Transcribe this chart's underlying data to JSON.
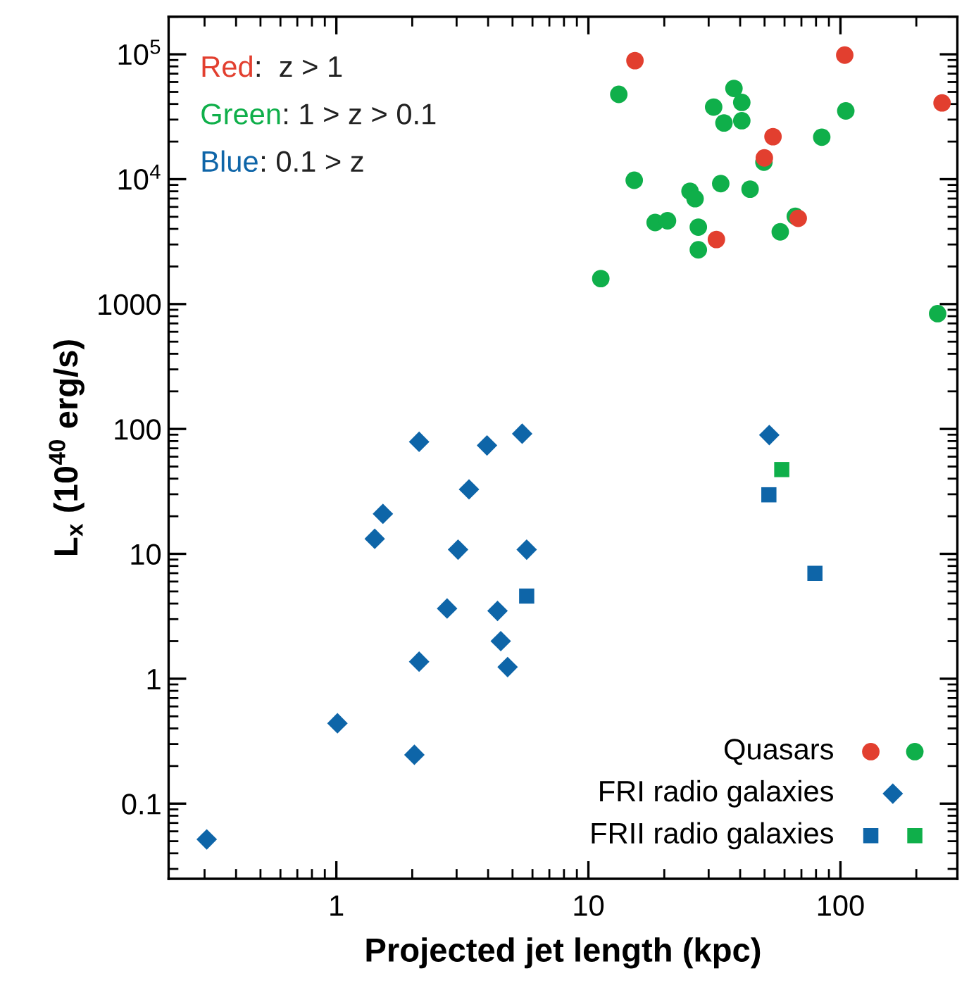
{
  "chart_data": {
    "type": "scatter",
    "xlabel": "Projected jet length (kpc)",
    "ylabel": "L$_{x}$ (10$^{40}$ erg/s)",
    "annotations": [
      "Red:  z > 1",
      "Green: 1 > z > 0.1",
      "Blue: 0.1 > z"
    ],
    "log": "xy",
    "xlim": [
      0.216,
      291
    ],
    "ylim": [
      0.025,
      200000
    ],
    "xticks": [
      1,
      10,
      100
    ],
    "yticks": [
      0.1,
      1,
      10,
      100,
      1000,
      {
        "value": 10000,
        "label": "10$^{4}$"
      },
      {
        "value": 100000,
        "label": "10$^{5}$"
      }
    ],
    "grid": false,
    "legend": "bottom right",
    "series": [
      {
        "name": "Quasars",
        "color": "#e23f2f",
        "marker": "circle",
        "x": [
          15.3,
          104,
          253,
          54,
          49.9,
          68,
          32.2
        ],
        "values": [
          89000,
          98600,
          40800,
          21900,
          14800,
          4860,
          3290
        ]
      },
      {
        "color": "#0faf4a",
        "marker": "circle",
        "x": [
          13.2,
          37.8,
          31.4,
          40.6,
          34.5,
          40.6,
          105,
          84.3,
          49.7,
          15.2,
          25.3,
          26.5,
          33.5,
          43.8,
          18.4,
          20.6,
          27.3,
          27.3,
          57.7,
          66.2,
          11.2,
          243
        ],
        "values": [
          47800,
          53300,
          37800,
          41200,
          28200,
          29400,
          35200,
          21700,
          13700,
          9800,
          8010,
          6980,
          9220,
          8320,
          4500,
          4650,
          4130,
          2720,
          3790,
          5040,
          1600,
          838
        ]
      },
      {
        "name": "FRI radio galaxies",
        "color": "#0e65a8",
        "marker": "diamond",
        "x": [
          0.306,
          1.01,
          2.04,
          2.13,
          4.78,
          4.49,
          4.36,
          2.75,
          1.42,
          1.53,
          3.04,
          5.69,
          3.36,
          2.13,
          3.96,
          5.46,
          52.2
        ],
        "values": [
          0.0517,
          0.44,
          0.246,
          1.37,
          1.24,
          2.0,
          3.49,
          3.65,
          13.2,
          20.9,
          10.8,
          10.8,
          32.8,
          78.9,
          73.8,
          91.6,
          89.4
        ]
      },
      {
        "name": "FRII radio galaxies",
        "color": "#0e65a8",
        "marker": "square",
        "x": [
          5.69,
          52.0,
          79.2
        ],
        "values": [
          4.59,
          29.7,
          6.98
        ]
      },
      {
        "color": "#0faf4a",
        "marker": "square",
        "x": [
          58.5
        ],
        "values": [
          47.3
        ]
      }
    ]
  }
}
